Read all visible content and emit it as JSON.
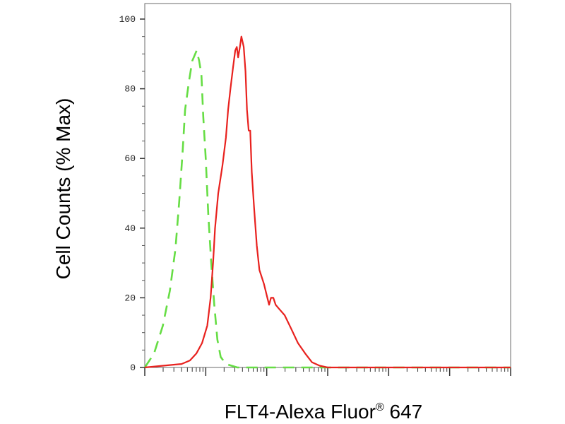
{
  "chart_data": {
    "type": "line",
    "xlabel_prefix": "FLT4-Alexa Fluor",
    "xlabel_symbol": "®",
    "xlabel_suffix": " 647",
    "ylabel": "Cell Counts (% Max)",
    "ylim": [
      0,
      100
    ],
    "yticks": [
      "0",
      "20",
      "40",
      "60",
      "80",
      "100"
    ],
    "xscale": "log",
    "xlim": [
      1,
      1000000
    ],
    "xticks_labeled": [],
    "grid": false,
    "legend": "none",
    "series": [
      {
        "style": "dashed",
        "color": "#66dd44",
        "points": [
          [
            1.0,
            0
          ],
          [
            1.42,
            4
          ],
          [
            1.98,
            12
          ],
          [
            2.58,
            22
          ],
          [
            3.18,
            34
          ],
          [
            3.68,
            48
          ],
          [
            4.18,
            62
          ],
          [
            4.58,
            74
          ],
          [
            5.3,
            82
          ],
          [
            6.0,
            88
          ],
          [
            7.1,
            91
          ],
          [
            7.8,
            88
          ],
          [
            8.5,
            84
          ],
          [
            9.1,
            72
          ],
          [
            10.0,
            60
          ],
          [
            11.0,
            44
          ],
          [
            12.3,
            30
          ],
          [
            13.8,
            18
          ],
          [
            15.5,
            8
          ],
          [
            17.6,
            3
          ],
          [
            21.4,
            1
          ],
          [
            33.0,
            0
          ],
          [
            100,
            0
          ],
          [
            400,
            0
          ],
          [
            4000,
            0
          ],
          [
            1000000,
            0
          ]
        ]
      },
      {
        "style": "solid",
        "color": "#e8211e",
        "points": [
          [
            1.0,
            0
          ],
          [
            2.0,
            0.5
          ],
          [
            4.0,
            1
          ],
          [
            5.5,
            2
          ],
          [
            7.0,
            4
          ],
          [
            8.7,
            7
          ],
          [
            10.6,
            12
          ],
          [
            12.0,
            20
          ],
          [
            13.2,
            30
          ],
          [
            14.2,
            40
          ],
          [
            16.0,
            50
          ],
          [
            18.8,
            58
          ],
          [
            21.4,
            66
          ],
          [
            23.3,
            74
          ],
          [
            25.4,
            80
          ],
          [
            28.0,
            86
          ],
          [
            30.5,
            91
          ],
          [
            32.3,
            92
          ],
          [
            34.0,
            89
          ],
          [
            36.3,
            92
          ],
          [
            38.4,
            95
          ],
          [
            42.0,
            92
          ],
          [
            44.8,
            85
          ],
          [
            47.4,
            74
          ],
          [
            50.6,
            68
          ],
          [
            53.6,
            68
          ],
          [
            56.8,
            56
          ],
          [
            62.0,
            46
          ],
          [
            68.7,
            35
          ],
          [
            75.9,
            28
          ],
          [
            90.0,
            24
          ],
          [
            109.3,
            18
          ],
          [
            117.4,
            20
          ],
          [
            128.2,
            20
          ],
          [
            139.9,
            18
          ],
          [
            156.4,
            17
          ],
          [
            197.0,
            15
          ],
          [
            253.9,
            11
          ],
          [
            325.5,
            7
          ],
          [
            428.4,
            4
          ],
          [
            551.0,
            1.5
          ],
          [
            738.2,
            0.5
          ],
          [
            1000,
            0
          ],
          [
            1000000,
            0
          ]
        ]
      }
    ]
  }
}
